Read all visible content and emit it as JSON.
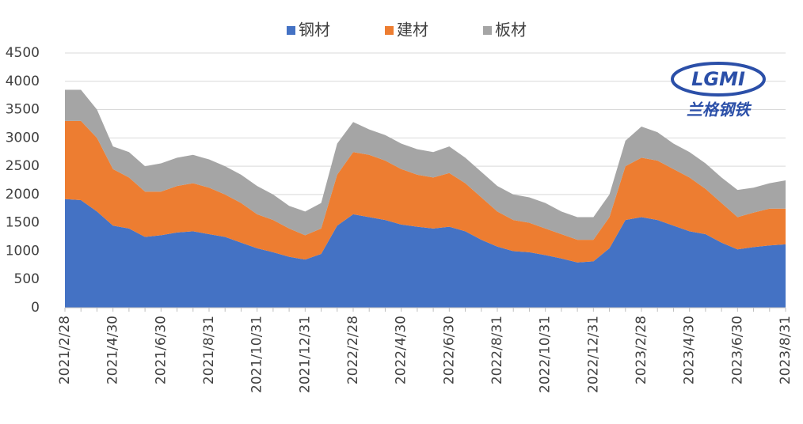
{
  "chart_data": {
    "type": "stacked_area",
    "legend_position": "top",
    "grid": true,
    "logo": {
      "text": "LGMI",
      "subtitle": "兰格钢铁"
    },
    "ylim": [
      0,
      4500
    ],
    "yticks": [
      0,
      500,
      1000,
      1500,
      2000,
      2500,
      3000,
      3500,
      4000,
      4500
    ],
    "categories": [
      "2021/2/28",
      null,
      null,
      "2021/4/30",
      null,
      null,
      "2021/6/30",
      null,
      null,
      "2021/8/31",
      null,
      null,
      "2021/10/31",
      null,
      null,
      "2021/12/31",
      null,
      null,
      "2022/2/28",
      null,
      null,
      "2022/4/30",
      null,
      null,
      "2022/6/30",
      null,
      null,
      "2022/8/31",
      null,
      null,
      "2022/10/31",
      null,
      null,
      "2022/12/31",
      null,
      null,
      "2023/2/28",
      null,
      null,
      "2023/4/30",
      null,
      null,
      "2023/6/30",
      null,
      null,
      "2023/8/31"
    ],
    "series": [
      {
        "name": "钢材",
        "color": "#4472c4",
        "values": [
          1920,
          1900,
          1700,
          1450,
          1400,
          1250,
          1280,
          1330,
          1350,
          1300,
          1250,
          1150,
          1050,
          980,
          900,
          850,
          950,
          1450,
          1650,
          1600,
          1550,
          1470,
          1430,
          1400,
          1430,
          1350,
          1200,
          1080,
          1000,
          980,
          930,
          870,
          800,
          820,
          1050,
          1550,
          1600,
          1550,
          1450,
          1350,
          1300,
          1150,
          1030,
          1070,
          1100,
          1120
        ]
      },
      {
        "name": "建材",
        "color": "#ed7d31",
        "values": [
          1380,
          1400,
          1300,
          1000,
          900,
          800,
          770,
          820,
          850,
          820,
          750,
          700,
          600,
          570,
          500,
          430,
          450,
          900,
          1100,
          1100,
          1050,
          980,
          920,
          900,
          950,
          850,
          750,
          620,
          550,
          520,
          470,
          430,
          400,
          380,
          550,
          950,
          1050,
          1050,
          1000,
          950,
          800,
          700,
          570,
          610,
          650,
          630
        ]
      },
      {
        "name": "板材",
        "color": "#a5a5a5",
        "values": [
          550,
          550,
          500,
          400,
          450,
          450,
          500,
          500,
          500,
          500,
          500,
          500,
          500,
          450,
          400,
          420,
          450,
          550,
          530,
          450,
          450,
          450,
          450,
          450,
          470,
          450,
          450,
          450,
          450,
          450,
          450,
          400,
          400,
          400,
          400,
          450,
          550,
          500,
          450,
          450,
          450,
          450,
          480,
          440,
          450,
          500
        ]
      }
    ]
  }
}
